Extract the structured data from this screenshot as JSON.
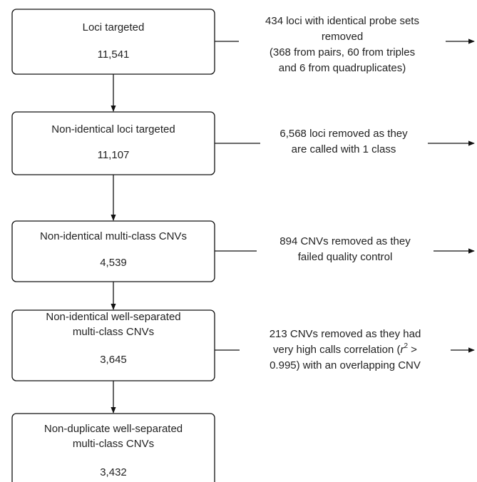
{
  "boxes": [
    {
      "label": [
        "Loci targeted"
      ],
      "count": "11,541"
    },
    {
      "label": [
        "Non-identical loci targeted"
      ],
      "count": "11,107"
    },
    {
      "label": [
        "Non-identical multi-class CNVs"
      ],
      "count": "4,539"
    },
    {
      "label": [
        "Non-identical well-separated",
        "multi-class CNVs"
      ],
      "count": "3,645"
    },
    {
      "label": [
        "Non-duplicate well-separated",
        "multi-class CNVs"
      ],
      "count": "3,432"
    }
  ],
  "notes": [
    {
      "lines": [
        [
          "434 loci with identical probe sets"
        ],
        [
          "removed"
        ],
        [
          "(368 from pairs, 60 from triples"
        ],
        [
          "and 6 from quadruplicates)"
        ]
      ]
    },
    {
      "lines": [
        [
          "6,568 loci removed as they"
        ],
        [
          "are called with 1 class"
        ]
      ]
    },
    {
      "lines": [
        [
          "894 CNVs removed as they"
        ],
        [
          "failed quality control"
        ]
      ]
    },
    {
      "lines": [
        [
          "213 CNVs removed as they had"
        ],
        [
          "very high calls correlation (",
          "r",
          "2",
          " >"
        ],
        [
          "0.995) with an overlapping CNV"
        ]
      ]
    }
  ]
}
